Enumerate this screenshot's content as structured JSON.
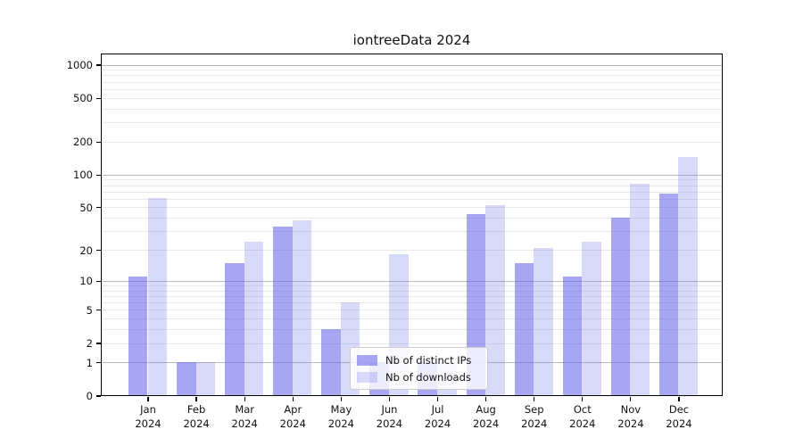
{
  "chart_data": {
    "type": "bar",
    "title": "iontreeData 2024",
    "categories": [
      "Jan",
      "Feb",
      "Mar",
      "Apr",
      "May",
      "Jun",
      "Jul",
      "Aug",
      "Sep",
      "Oct",
      "Nov",
      "Dec"
    ],
    "year_label": "2024",
    "series": [
      {
        "name": "Nb of distinct IPs",
        "color": "rgba(80,80,230,0.51)",
        "values": [
          11,
          1,
          15,
          33,
          3,
          1,
          1,
          43,
          15,
          11,
          40,
          67
        ]
      },
      {
        "name": "Nb of downloads",
        "color": "rgba(80,80,230,0.22)",
        "values": [
          61,
          1,
          24,
          38,
          6,
          18,
          1,
          52,
          21,
          24,
          82,
          145
        ]
      }
    ],
    "yticks": [
      0,
      1,
      2,
      5,
      10,
      20,
      50,
      100,
      200,
      500,
      1000
    ],
    "ylim": [
      0,
      1250
    ],
    "yscale": "symlog",
    "grid": true,
    "legend_position": "lower center"
  },
  "colors": {
    "bar_base": "#5050e6",
    "grid_minor": "#e9e9e9",
    "grid_major": "#bdbdbd",
    "axis": "#000000",
    "background": "#ffffff"
  }
}
